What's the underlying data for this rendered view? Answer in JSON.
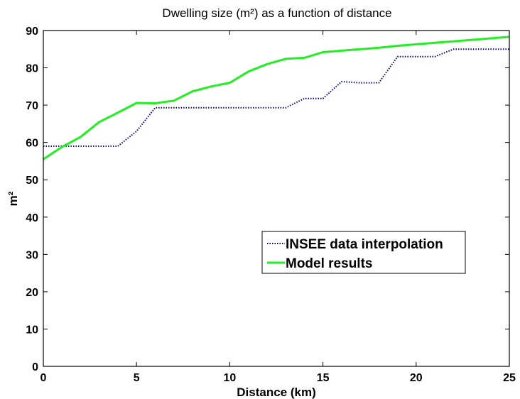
{
  "chart_data": {
    "type": "line",
    "title": "Dwelling size (m²) as a function of distance",
    "xlabel": "Distance (km)",
    "ylabel": "m²",
    "xlim": [
      0,
      25
    ],
    "ylim": [
      0,
      90
    ],
    "x_ticks": [
      0,
      5,
      10,
      15,
      20,
      25
    ],
    "y_ticks": [
      0,
      10,
      20,
      30,
      40,
      50,
      60,
      70,
      80,
      90
    ],
    "grid": false,
    "legend_position": "center-right",
    "series": [
      {
        "name": "INSEE data interpolation",
        "color": "#00008B",
        "style": "dotted",
        "x": [
          0,
          1,
          2,
          3,
          4,
          5,
          6,
          7,
          8,
          9,
          10,
          11,
          12,
          13,
          14,
          15,
          16,
          17,
          18,
          19,
          20,
          21,
          22,
          23,
          24,
          25
        ],
        "y": [
          59,
          59,
          59,
          59,
          59,
          63,
          69.3,
          69.3,
          69.3,
          69.3,
          69.3,
          69.3,
          69.3,
          69.3,
          71.8,
          71.8,
          76.3,
          76,
          76,
          83,
          83,
          83,
          85,
          85,
          85,
          85
        ]
      },
      {
        "name": "Model results",
        "color": "#22EE22",
        "style": "solid",
        "x": [
          0,
          1,
          2,
          3,
          4,
          5,
          6,
          7,
          8,
          9,
          10,
          11,
          12,
          13,
          14,
          15,
          16,
          17,
          18,
          19,
          20,
          21,
          22,
          23,
          24,
          25
        ],
        "y": [
          55.5,
          58.8,
          61.5,
          65.5,
          68,
          70.6,
          70.5,
          71.2,
          73.7,
          75,
          76,
          79,
          81,
          82.4,
          82.7,
          84.2,
          84.6,
          85,
          85.4,
          85.9,
          86.3,
          86.7,
          87.1,
          87.5,
          87.9,
          88.3
        ]
      }
    ]
  }
}
